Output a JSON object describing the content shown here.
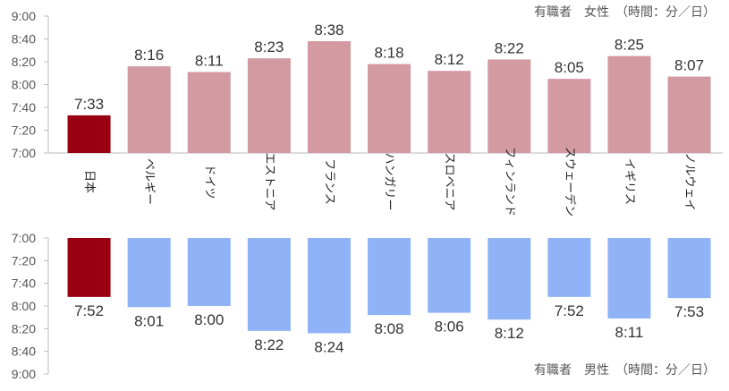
{
  "chart_data": [
    {
      "type": "bar",
      "orientation": "upward",
      "title": "有職者　女性　（時間：分／日）",
      "unit": "minutes per day",
      "categories": [
        "日本",
        "ベルギー",
        "ドイツ",
        "エストニア",
        "フランス",
        "ハンガリー",
        "スロベニア",
        "フィンランド",
        "スウェーデン",
        "イギリス",
        "ノルウェイ"
      ],
      "values": [
        453,
        496,
        491,
        503,
        518,
        498,
        492,
        502,
        485,
        505,
        487
      ],
      "value_labels": [
        "7:33",
        "8:16",
        "8:11",
        "8:23",
        "8:38",
        "8:18",
        "8:12",
        "8:22",
        "8:05",
        "8:25",
        "8:07"
      ],
      "ylim": [
        420,
        540
      ],
      "yticks": [
        420,
        440,
        460,
        480,
        500,
        520,
        540
      ],
      "ytick_labels": [
        "7:00",
        "7:20",
        "7:40",
        "8:00",
        "8:20",
        "8:40",
        "9:00"
      ],
      "highlight_index": 0,
      "colors": {
        "highlight": "#990011",
        "default": "#d39aa2"
      }
    },
    {
      "type": "bar",
      "orientation": "downward",
      "title": "有職者　男性　（時間：分／日）",
      "unit": "minutes per day",
      "categories": [
        "日本",
        "ベルギー",
        "ドイツ",
        "エストニア",
        "フランス",
        "ハンガリー",
        "スロベニア",
        "フィンランド",
        "スウェーデン",
        "イギリス",
        "ノルウェイ"
      ],
      "values": [
        472,
        481,
        480,
        502,
        504,
        488,
        486,
        492,
        472,
        491,
        473
      ],
      "value_labels": [
        "7:52",
        "8:01",
        "8:00",
        "8:22",
        "8:24",
        "8:08",
        "8:06",
        "8:12",
        "7:52",
        "8:11",
        "7:53"
      ],
      "ylim": [
        420,
        540
      ],
      "yticks": [
        420,
        440,
        460,
        480,
        500,
        520,
        540
      ],
      "ytick_labels": [
        "7:00",
        "7:20",
        "7:40",
        "8:00",
        "8:20",
        "8:40",
        "9:00"
      ],
      "highlight_index": 0,
      "colors": {
        "highlight": "#990011",
        "default": "#8fb3f6"
      }
    }
  ]
}
